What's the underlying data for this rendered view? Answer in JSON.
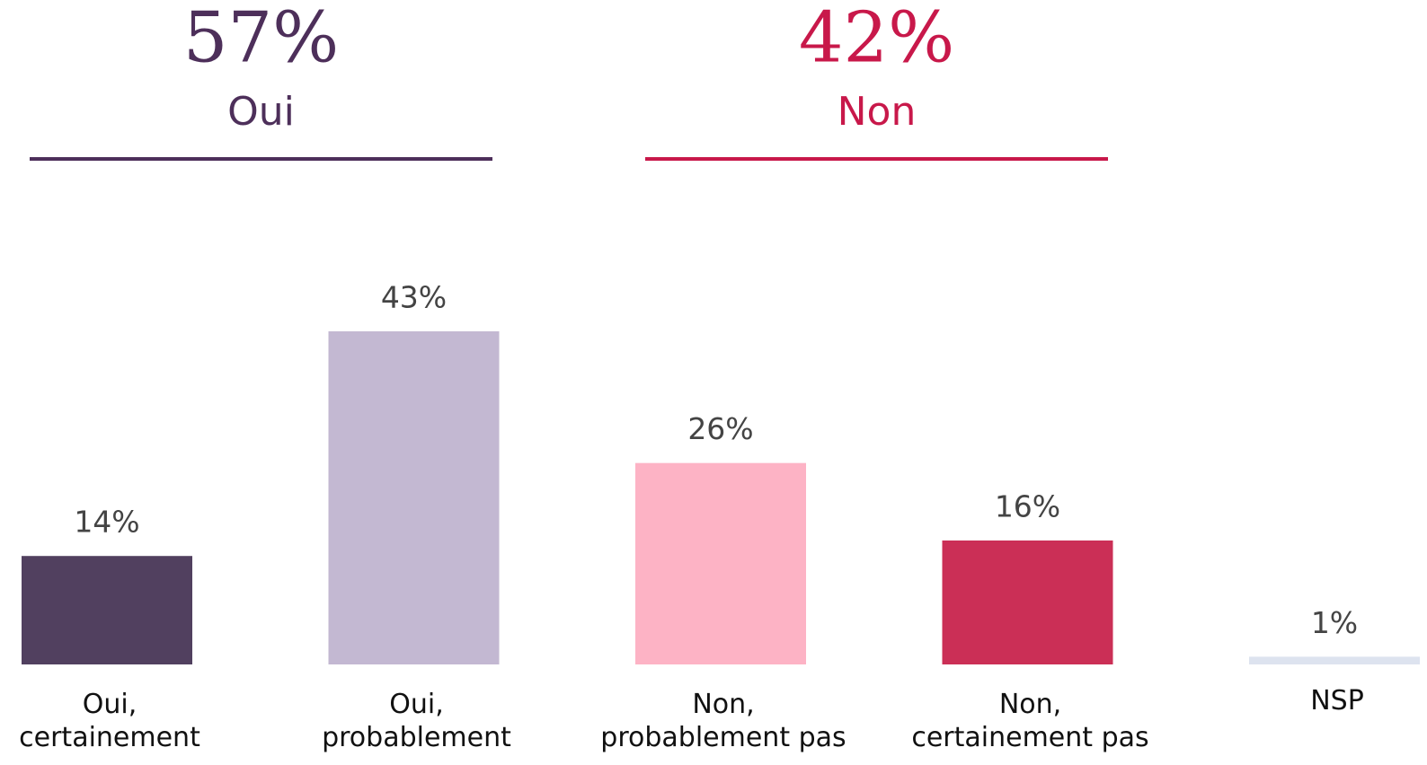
{
  "chart_data": {
    "type": "bar",
    "groups": [
      {
        "label": "57%",
        "name": "Oui",
        "color": "#4d2f5a"
      },
      {
        "label": "42%",
        "name": "Non",
        "color": "#c8184a"
      }
    ],
    "categories": [
      [
        "Oui,",
        "certainement"
      ],
      [
        "Oui,",
        "probablement"
      ],
      [
        "Non,",
        "probablement pas"
      ],
      [
        "Non,",
        "certainement pas"
      ],
      [
        "NSP"
      ]
    ],
    "values": [
      14,
      43,
      26,
      16,
      1
    ],
    "value_labels": [
      "14%",
      "43%",
      "26%",
      "16%",
      "1%"
    ],
    "colors": [
      "#51405f",
      "#c3b8d2",
      "#fdb3c5",
      "#cb2f56",
      "#dde3ef"
    ]
  }
}
